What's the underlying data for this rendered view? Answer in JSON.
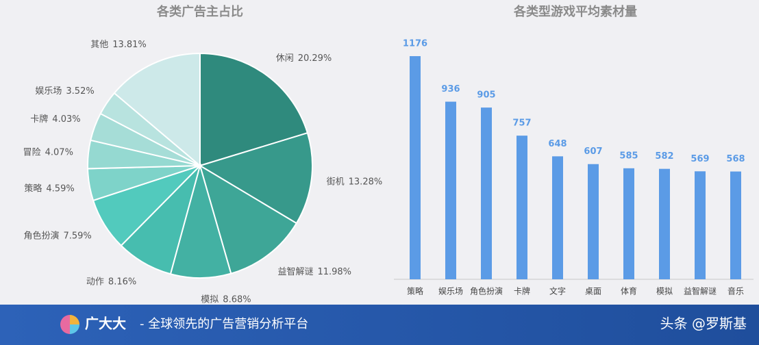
{
  "chart_data": [
    {
      "type": "pie",
      "title": "各类广告主占比",
      "categories": [
        "休闲",
        "街机",
        "益智解谜",
        "模拟",
        "动作",
        "角色扮演",
        "策略",
        "冒险",
        "卡牌",
        "娱乐场",
        "其他"
      ],
      "values": [
        20.29,
        13.28,
        11.98,
        8.68,
        8.16,
        7.59,
        4.59,
        4.07,
        4.03,
        3.52,
        13.81
      ],
      "value_labels": [
        "20.29%",
        "13.28%",
        "11.98%",
        "8.68%",
        "8.16%",
        "7.59%",
        "4.59%",
        "4.07%",
        "4.03%",
        "3.52%",
        "13.81%"
      ],
      "colors": [
        "#2f8a7d",
        "#37998b",
        "#3ea697",
        "#43b1a3",
        "#47bdaf",
        "#52cabd",
        "#7ed3c9",
        "#95d9d1",
        "#a6ddd7",
        "#b8e3df",
        "#cde9e9"
      ]
    },
    {
      "type": "bar",
      "title": "各类型游戏平均素材量",
      "categories": [
        "策略",
        "娱乐场",
        "角色扮演",
        "卡牌",
        "文字",
        "桌面",
        "体育",
        "模拟",
        "益智解谜",
        "音乐"
      ],
      "values": [
        1176,
        936,
        905,
        757,
        648,
        607,
        585,
        582,
        569,
        568
      ],
      "color": "#5b9be6"
    }
  ],
  "footer": {
    "brand": "广大大",
    "slogan": "- 全球领先的广告营销分析平台",
    "credit": "头条 @罗斯基"
  }
}
